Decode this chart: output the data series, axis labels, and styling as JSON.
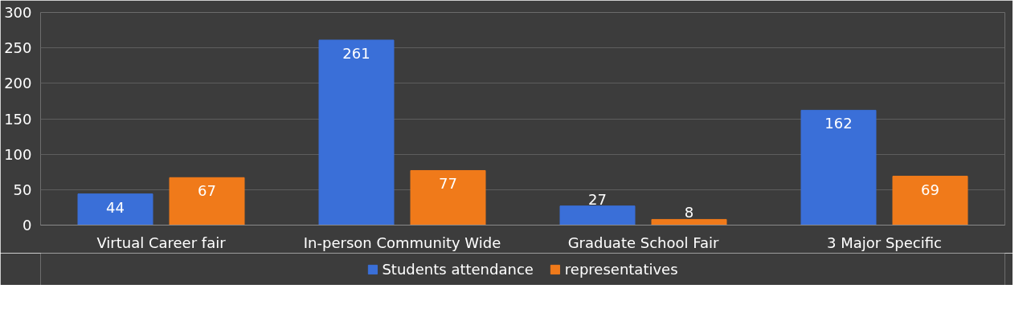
{
  "chart_data": {
    "type": "bar",
    "categories": [
      "Virtual Career fair",
      "In-person Community Wide",
      "Graduate School Fair",
      "3 Major Specific"
    ],
    "series": [
      {
        "name": "Students attendance",
        "color": "#3a6fd8",
        "values": [
          44,
          261,
          27,
          162
        ]
      },
      {
        "name": "representatives",
        "color": "#f07a1a",
        "values": [
          67,
          77,
          8,
          69
        ]
      }
    ],
    "ylim": [
      0,
      300
    ],
    "yticks": [
      0,
      50,
      100,
      150,
      200,
      250,
      300
    ],
    "grid": "y",
    "legend": "bottom",
    "data_labels": true
  }
}
